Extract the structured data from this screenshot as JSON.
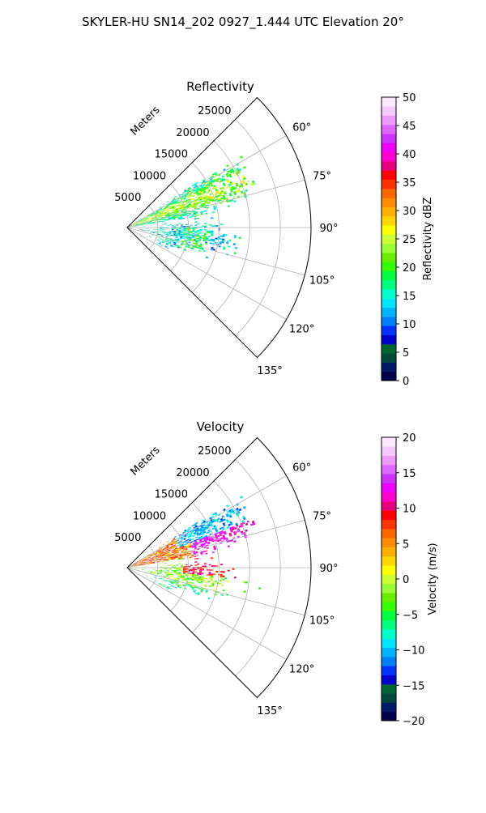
{
  "figure": {
    "title": "SKYLER-HU  SN14_202  0927_1.444 UTC Elevation 20°"
  },
  "chart_data": [
    {
      "type": "heatmap",
      "subtype": "polar-sector",
      "title": "Reflectivity",
      "radial_axis_label": "Meters",
      "radial_ticks": [
        5000,
        10000,
        15000,
        20000,
        25000
      ],
      "radial_tick_labels": [
        "5000",
        "10000",
        "15000",
        "20000",
        "25000"
      ],
      "radial_range": [
        0,
        30000
      ],
      "angle_range_deg": [
        45,
        135
      ],
      "angle_ticks_deg": [
        60,
        75,
        90,
        105,
        120,
        135
      ],
      "angle_tick_labels": [
        "60°",
        "75°",
        "90°",
        "105°",
        "120°",
        "135°"
      ],
      "grid": true,
      "colorbar": {
        "label": "Reflectivity dBZ",
        "range": [
          0,
          50
        ],
        "ticks": [
          0,
          5,
          10,
          15,
          20,
          25,
          30,
          35,
          40,
          45,
          50
        ],
        "tick_labels": [
          "0",
          "5",
          "10",
          "15",
          "20",
          "25",
          "30",
          "35",
          "40",
          "45",
          "50"
        ],
        "colors": [
          "#00004a",
          "#001a66",
          "#004a3a",
          "#006633",
          "#0000cc",
          "#0033ff",
          "#0080ff",
          "#00b3ff",
          "#00e6ff",
          "#00ffcc",
          "#00ff80",
          "#00ff40",
          "#33ff00",
          "#66ee00",
          "#99ff33",
          "#ccff33",
          "#ffff00",
          "#ffd700",
          "#ffb000",
          "#ff8c00",
          "#ff6600",
          "#ff3300",
          "#ff0000",
          "#e6007e",
          "#ff00cc",
          "#ee00ff",
          "#cc33ff",
          "#dd66ff",
          "#ee99ff",
          "#f5c8ff",
          "#fde8ff"
        ]
      }
    },
    {
      "type": "heatmap",
      "subtype": "polar-sector",
      "title": "Velocity",
      "radial_axis_label": "Meters",
      "radial_ticks": [
        5000,
        10000,
        15000,
        20000,
        25000
      ],
      "radial_tick_labels": [
        "5000",
        "10000",
        "15000",
        "20000",
        "25000"
      ],
      "radial_range": [
        0,
        30000
      ],
      "angle_range_deg": [
        45,
        135
      ],
      "angle_ticks_deg": [
        60,
        75,
        90,
        105,
        120,
        135
      ],
      "angle_tick_labels": [
        "60°",
        "75°",
        "90°",
        "105°",
        "120°",
        "135°"
      ],
      "grid": true,
      "colorbar": {
        "label": "Velocity (m/s)",
        "range": [
          -20,
          20
        ],
        "ticks": [
          -20,
          -15,
          -10,
          -5,
          0,
          5,
          10,
          15,
          20
        ],
        "tick_labels": [
          "−20",
          "−15",
          "−10",
          "−5",
          "0",
          "5",
          "10",
          "15",
          "20"
        ],
        "colors": [
          "#00004a",
          "#001a66",
          "#004a3a",
          "#006633",
          "#0000cc",
          "#0033ff",
          "#0080ff",
          "#00b3ff",
          "#00e6ff",
          "#00ffcc",
          "#00ff80",
          "#00ff40",
          "#33ff00",
          "#66ee00",
          "#99ff33",
          "#ccff33",
          "#ffff00",
          "#ffd700",
          "#ffb000",
          "#ff8c00",
          "#ff6600",
          "#ff3300",
          "#ff0000",
          "#e6007e",
          "#ff00cc",
          "#ee00ff",
          "#cc33ff",
          "#dd66ff",
          "#ee99ff",
          "#f5c8ff",
          "#fde8ff"
        ]
      }
    }
  ]
}
